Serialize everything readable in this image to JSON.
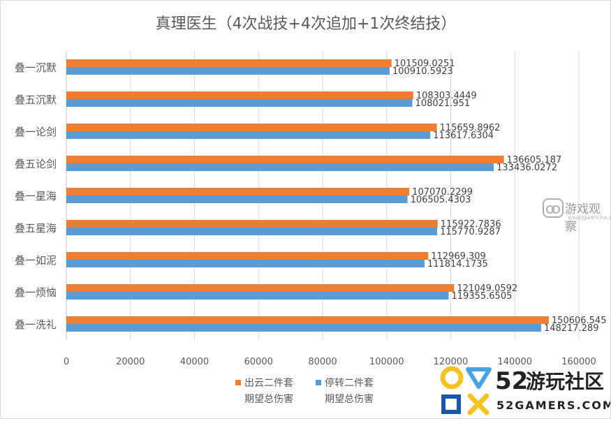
{
  "chart_data": {
    "type": "bar",
    "orientation": "horizontal",
    "title": "真理医生（4次战技+4次追加+1次终结技）",
    "categories": [
      "叠一沉默",
      "叠五沉默",
      "叠一论剑",
      "叠五论剑",
      "叠一星海",
      "叠五星海",
      "叠一如泥",
      "叠一烦恼",
      "叠一洗礼"
    ],
    "series": [
      {
        "name_lines": [
          "出云二件套",
          "期望总伤害"
        ],
        "color": "#ed7d31",
        "values": [
          101509.0251,
          108303.4449,
          115659.8962,
          136605.187,
          107070.2299,
          115922.7836,
          112969.309,
          121049.0592,
          150606.545
        ],
        "labels": [
          "101509.0251",
          "108303.4449",
          "115659.8962",
          "136605.187",
          "107070.2299",
          "115922.7836",
          "112969.309",
          "121049.0592",
          "150606.545"
        ]
      },
      {
        "name_lines": [
          "停转二件套",
          "期望总伤害"
        ],
        "color": "#5b9bd5",
        "values": [
          100910.5923,
          108021.951,
          113617.6304,
          133436.0272,
          106505.4303,
          115770.9287,
          111814.1735,
          119355.6505,
          148217.289
        ],
        "labels": [
          "100910.5923",
          "108021.951",
          "113617.6304",
          "133436.0272",
          "106505.4303",
          "115770.9287",
          "111814.1735",
          "119355.6505",
          "148217.289"
        ]
      }
    ],
    "xlim": [
      0,
      160000
    ],
    "xticks": [
      "0",
      "20000",
      "40000",
      "60000",
      "80000",
      "100000",
      "120000",
      "140000",
      "160000"
    ],
    "grid": "vertical",
    "legend_position": "bottom"
  },
  "watermarks": {
    "site1_cn": "游戏观察",
    "site1_en": "youxiguancha.com",
    "site2_num": "52",
    "site2_cn": "游玩社区",
    "site2_en": "52GAMERS.COM"
  }
}
